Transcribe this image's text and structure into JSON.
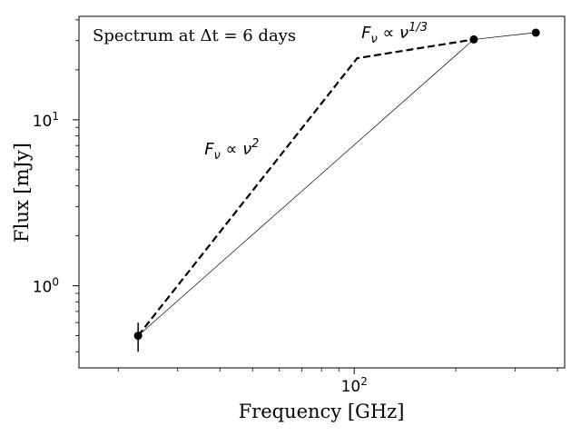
{
  "chart_data": {
    "type": "line",
    "annotation": "Spectrum at Δt = 6 days",
    "xlabel": "Frequency [GHz]",
    "ylabel": "Flux [mJy]",
    "xscale": "log",
    "yscale": "log",
    "xlim": [
      15.3,
      420
    ],
    "ylim": [
      0.32,
      42
    ],
    "grid": false,
    "x_major_ticks": [
      {
        "value": 100,
        "base": "10",
        "exp": "2"
      }
    ],
    "y_major_ticks": [
      {
        "value": 1,
        "base": "10",
        "exp": "0"
      },
      {
        "value": 10,
        "base": "10",
        "exp": "1"
      }
    ],
    "series": [
      {
        "style": "solid-thin",
        "color": "#000000",
        "points": [
          {
            "x": 22.9,
            "y": 0.5,
            "yerr_low": 0.1,
            "yerr_high": 0.1
          },
          {
            "x": 226,
            "y": 30.5
          },
          {
            "x": 345,
            "y": 33.5
          }
        ]
      },
      {
        "style": "dashed",
        "color": "#000000",
        "points": [
          {
            "x": 22.9,
            "y": 0.5
          },
          {
            "x": 102,
            "y": 23.5
          },
          {
            "x": 226,
            "y": 30.5
          }
        ]
      }
    ],
    "labels": [
      {
        "text_prefix": "F",
        "text_sub": "ν",
        "text_mid": " ∝ ν",
        "text_sup": "2",
        "x": 36,
        "y": 6.2
      },
      {
        "text_prefix": "F",
        "text_sub": "ν",
        "text_mid": " ∝ ν",
        "text_sup": "1/3",
        "x": 105,
        "y": 31
      }
    ]
  }
}
